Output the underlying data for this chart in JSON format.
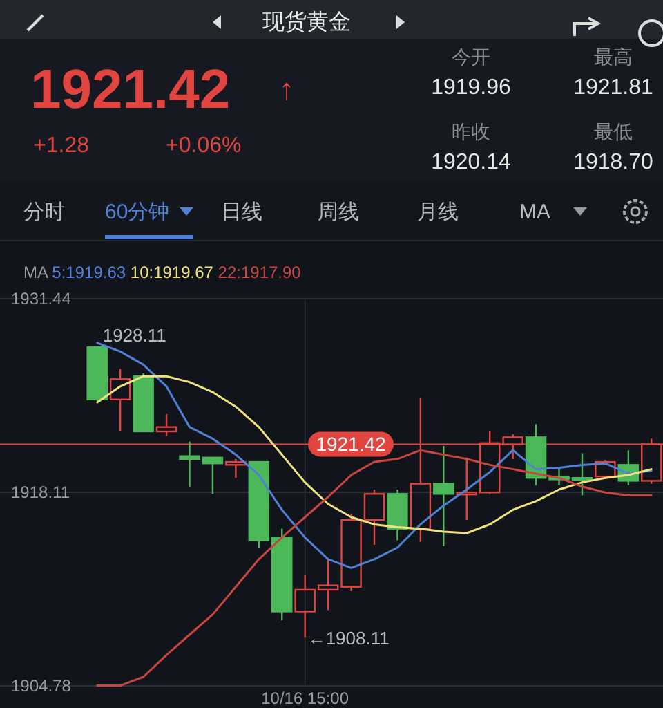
{
  "chart_data": {
    "type": "candlestick",
    "title": "现货黄金",
    "categories": [
      null,
      null,
      null,
      null,
      null,
      null,
      null,
      null,
      null,
      "10/16 15:00",
      null,
      null,
      null,
      null,
      null,
      null,
      null,
      null,
      null,
      null,
      null,
      null,
      null,
      null,
      null
    ],
    "ohlc": [
      [
        1928.1,
        1928.11,
        1924.4,
        1924.5
      ],
      [
        1924.5,
        1926.6,
        1922.3,
        1925.9
      ],
      [
        1926.1,
        1926.3,
        1922.3,
        1922.3
      ],
      [
        1922.3,
        1923.5,
        1922.0,
        1922.6
      ],
      [
        1920.6,
        1921.6,
        1918.5,
        1920.4
      ],
      [
        1920.5,
        1920.5,
        1918.0,
        1920.1
      ],
      [
        1920.0,
        1920.4,
        1919.1,
        1920.2
      ],
      [
        1920.2,
        1920.2,
        1914.3,
        1914.8
      ],
      [
        1915.0,
        1915.6,
        1909.3,
        1909.9
      ],
      [
        1909.9,
        1912.4,
        1908.11,
        1911.4
      ],
      [
        1911.4,
        1913.5,
        1910.0,
        1911.7
      ],
      [
        1911.6,
        1916.6,
        1911.3,
        1916.2
      ],
      [
        1916.2,
        1918.3,
        1914.5,
        1918.0
      ],
      [
        1918.0,
        1918.3,
        1914.8,
        1915.6
      ],
      [
        1915.6,
        1924.6,
        1914.7,
        1918.7
      ],
      [
        1918.7,
        1921.3,
        1914.4,
        1918.0
      ],
      [
        1918.0,
        1920.5,
        1916.2,
        1918.1
      ],
      [
        1918.1,
        1922.3,
        1918.0,
        1921.5
      ],
      [
        1921.4,
        1922.1,
        1920.4,
        1921.9
      ],
      [
        1921.9,
        1922.8,
        1918.6,
        1919.1
      ],
      [
        1919.2,
        1919.7,
        1918.6,
        1919.0
      ],
      [
        1919.1,
        1920.8,
        1917.9,
        1919.0
      ],
      [
        1919.2,
        1920.3,
        1919.2,
        1920.2
      ],
      [
        1920.0,
        1921.0,
        1918.6,
        1918.9
      ],
      [
        1918.9,
        1921.81,
        1918.7,
        1921.42
      ]
    ],
    "colors": [
      "#4cb85a",
      "#e0453f",
      "#4cb85a",
      "#e0453f",
      "#4cb85a",
      "#4cb85a",
      "#e0453f",
      "#4cb85a",
      "#4cb85a",
      "#e0453f",
      "#e0453f",
      "#e0453f",
      "#e0453f",
      "#4cb85a",
      "#e0453f",
      "#4cb85a",
      "#e0453f",
      "#e0453f",
      "#e0453f",
      "#4cb85a",
      "#4cb85a",
      "#4cb85a",
      "#e0453f",
      "#4cb85a",
      "#e0453f"
    ],
    "series": [
      {
        "type": "line",
        "name": "5:1919.63",
        "color": "#4f82d6",
        "values": [
          1928.4,
          1927.8,
          1926.9,
          1925.4,
          1922.6,
          1921.8,
          1920.7,
          1919.3,
          1916.9,
          1915.0,
          1913.5,
          1912.9,
          1913.5,
          1914.3,
          1915.9,
          1917.2,
          1918.3,
          1919.5,
          1921.0,
          1919.7,
          1919.8,
          1920.0,
          1920.1,
          1919.4,
          1919.6
        ]
      },
      {
        "type": "line",
        "name": "10:1919.67",
        "color": "#f2e27c",
        "values": [
          1924.3,
          1925.4,
          1926.1,
          1926.1,
          1925.7,
          1925.0,
          1924.0,
          1922.6,
          1920.7,
          1918.8,
          1917.3,
          1916.4,
          1915.9,
          1915.7,
          1915.6,
          1915.4,
          1915.3,
          1915.9,
          1916.9,
          1917.5,
          1918.3,
          1918.8,
          1919.1,
          1919.3,
          1919.7
        ]
      },
      {
        "type": "line",
        "name": "22:1917.90",
        "color": "#c9463f",
        "values": [
          1904.8,
          1904.8,
          1905.4,
          1906.9,
          1908.3,
          1909.7,
          1911.6,
          1913.5,
          1915.0,
          1916.4,
          1917.8,
          1919.3,
          1920.2,
          1920.4,
          1921.0,
          1920.7,
          1920.4,
          1920.0,
          1919.7,
          1919.4,
          1919.1,
          1918.5,
          1918.1,
          1917.9,
          1917.9
        ]
      }
    ],
    "legend_title": "MA",
    "legend": "top left",
    "ylim": [
      1904.78,
      1931.44
    ],
    "yticks": [
      1931.44,
      1918.11,
      1904.78
    ],
    "grid": true,
    "ref_lines": [
      {
        "axis": "y",
        "value": 1921.42,
        "label": "1921.42",
        "color": "#e0453f"
      }
    ],
    "annotations": [
      "1921.42",
      "↑",
      "+1.28",
      "+0.06%",
      "今开",
      "1919.96",
      "最高",
      "1921.81",
      "昨收",
      "1920.14",
      "最低",
      "1918.70",
      "分时",
      "60分钟",
      "日线",
      "周线",
      "月线",
      "MA",
      "1928.11",
      {
        "text": "←1908.11",
        "x": "10/16 15:00",
        "y": 1908.11
      }
    ]
  }
}
